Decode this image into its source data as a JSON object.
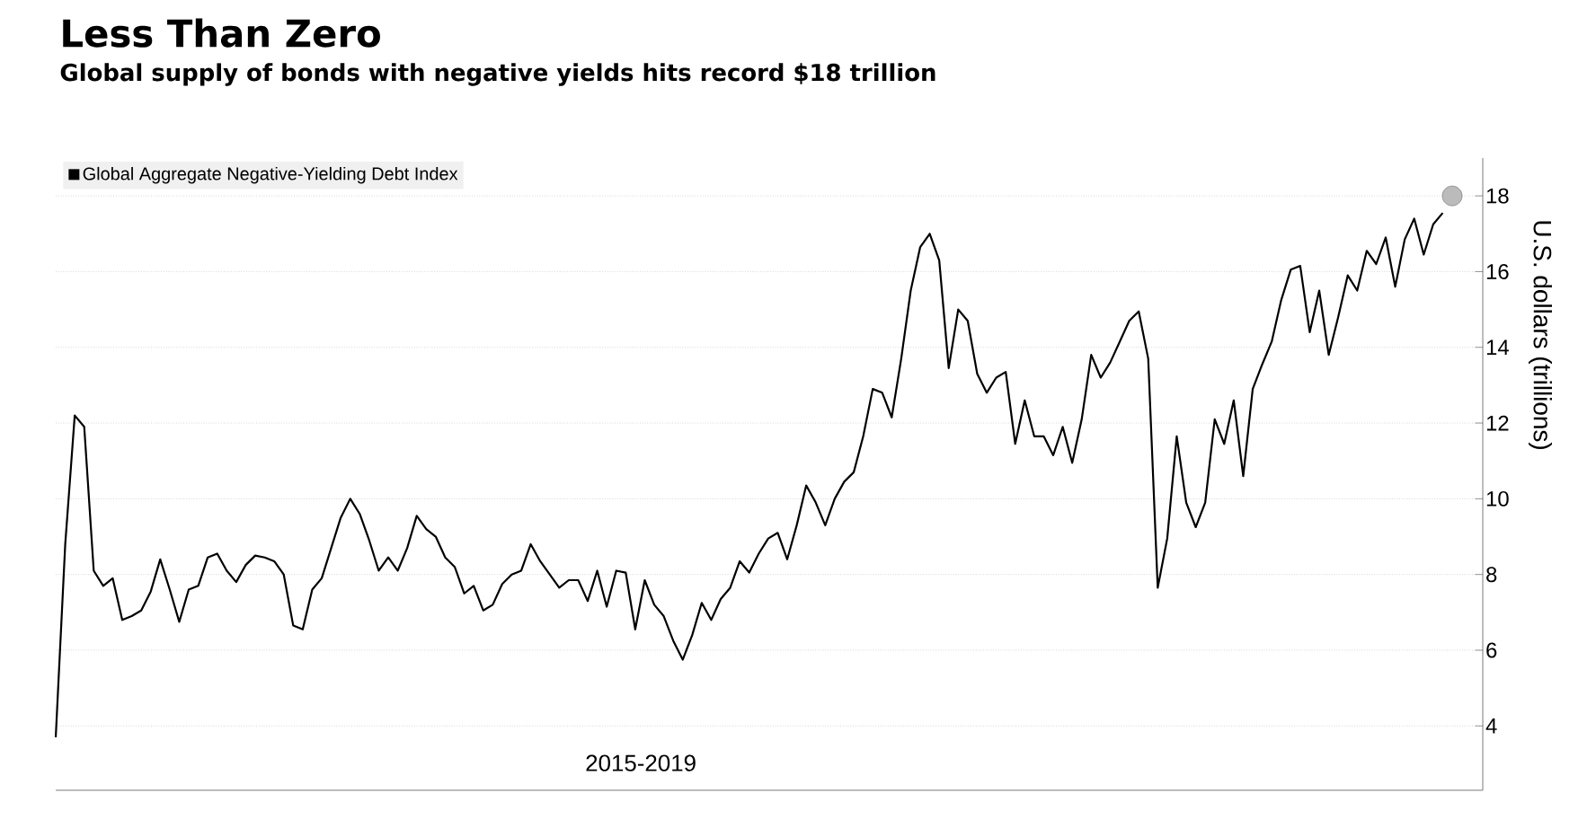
{
  "chart_data": {
    "type": "line",
    "title": "Less Than Zero",
    "subtitle": "Global supply of bonds with negative yields hits record $18 trillion",
    "ylabel": "U.S. dollars (trillions)",
    "annotations": [
      "2015-2019"
    ],
    "categories": [
      null,
      null,
      null,
      null,
      null,
      null,
      null,
      null,
      null,
      null,
      null,
      null,
      null,
      null,
      null,
      null,
      null,
      null,
      null,
      null,
      null,
      null,
      null,
      null,
      null,
      null,
      null,
      null,
      null,
      null,
      null,
      null,
      null,
      null,
      null,
      null,
      null,
      null,
      null,
      null,
      null,
      null,
      null,
      null,
      null,
      null,
      null,
      null,
      null,
      null,
      null,
      null,
      null,
      null,
      null,
      null,
      null,
      null,
      null,
      null,
      null,
      null,
      null,
      null,
      null,
      null,
      null,
      null,
      null,
      null,
      null,
      null,
      null,
      null,
      null,
      null,
      null,
      null,
      null,
      null,
      null,
      null,
      null,
      null,
      null,
      null,
      null,
      null,
      null,
      null,
      null,
      null,
      null,
      null,
      null,
      null,
      null,
      null,
      null,
      null,
      null,
      null,
      null,
      null,
      null,
      null,
      null,
      null,
      null,
      null,
      null,
      null,
      null,
      null,
      null,
      null,
      null,
      null,
      null,
      null,
      null,
      null,
      null,
      null,
      null,
      null,
      null,
      null,
      null,
      null,
      null,
      null,
      null,
      null,
      null,
      null,
      null,
      null,
      null,
      null,
      null,
      null,
      null,
      null,
      null,
      null,
      null,
      null
    ],
    "series": [
      {
        "name": "Global Aggregate Negative-Yielding Debt Index",
        "color": "#000000",
        "values": [
          3.7,
          8.8,
          12.2,
          11.9,
          8.1,
          7.7,
          7.9,
          6.8,
          6.9,
          7.05,
          7.55,
          8.4,
          7.6,
          6.75,
          7.6,
          7.7,
          8.45,
          8.55,
          8.1,
          7.8,
          8.25,
          8.5,
          8.45,
          8.35,
          8.0,
          6.65,
          6.55,
          7.6,
          7.9,
          8.7,
          9.5,
          10.0,
          9.6,
          8.9,
          8.1,
          8.45,
          8.1,
          8.7,
          9.55,
          9.2,
          9.0,
          8.45,
          8.2,
          7.5,
          7.7,
          7.05,
          7.2,
          7.75,
          8.0,
          8.1,
          8.8,
          8.35,
          8.0,
          7.65,
          7.85,
          7.85,
          7.3,
          8.1,
          7.15,
          8.1,
          8.05,
          6.55,
          7.85,
          7.2,
          6.9,
          6.25,
          5.75,
          6.4,
          7.25,
          6.8,
          7.35,
          7.65,
          8.35,
          8.05,
          8.55,
          8.95,
          9.1,
          8.4,
          9.3,
          10.35,
          9.9,
          9.3,
          10.0,
          10.45,
          10.7,
          11.65,
          12.9,
          12.8,
          12.15,
          13.7,
          15.5,
          16.65,
          17.0,
          16.3,
          13.45,
          15.0,
          14.7,
          13.3,
          12.8,
          13.2,
          13.35,
          11.45,
          12.6,
          11.65,
          11.65,
          11.15,
          11.9,
          10.95,
          12.1,
          13.8,
          13.2,
          13.6,
          14.15,
          14.7,
          14.95,
          13.7,
          7.65,
          8.95,
          11.65,
          9.9,
          9.25,
          9.9,
          12.1,
          11.45,
          12.6,
          10.6,
          12.9,
          13.55,
          14.15,
          15.25,
          16.05,
          16.15,
          14.4,
          15.5,
          13.8,
          14.8,
          15.9,
          15.5,
          16.55,
          16.2,
          16.9,
          15.6,
          16.85,
          17.4,
          16.45,
          17.25,
          17.55,
          null
        ]
      },
      {
        "type": "scatter",
        "color": "#bbbbbb",
        "marker": "circle",
        "values": [
          null,
          null,
          null,
          null,
          null,
          null,
          null,
          null,
          null,
          null,
          null,
          null,
          null,
          null,
          null,
          null,
          null,
          null,
          null,
          null,
          null,
          null,
          null,
          null,
          null,
          null,
          null,
          null,
          null,
          null,
          null,
          null,
          null,
          null,
          null,
          null,
          null,
          null,
          null,
          null,
          null,
          null,
          null,
          null,
          null,
          null,
          null,
          null,
          null,
          null,
          null,
          null,
          null,
          null,
          null,
          null,
          null,
          null,
          null,
          null,
          null,
          null,
          null,
          null,
          null,
          null,
          null,
          null,
          null,
          null,
          null,
          null,
          null,
          null,
          null,
          null,
          null,
          null,
          null,
          null,
          null,
          null,
          null,
          null,
          null,
          null,
          null,
          null,
          null,
          null,
          null,
          null,
          null,
          null,
          null,
          null,
          null,
          null,
          null,
          null,
          null,
          null,
          null,
          null,
          null,
          null,
          null,
          null,
          null,
          null,
          null,
          null,
          null,
          null,
          null,
          null,
          null,
          null,
          null,
          null,
          null,
          null,
          null,
          null,
          null,
          null,
          null,
          null,
          null,
          null,
          null,
          null,
          null,
          null,
          null,
          null,
          null,
          null,
          null,
          null,
          null,
          null,
          null,
          null,
          null,
          null,
          null,
          18
        ]
      }
    ],
    "ylim": [
      2.3,
      19
    ],
    "yticks": [
      4,
      6,
      8,
      10,
      12,
      14,
      16,
      18
    ],
    "grid": "y",
    "legend": "top left"
  }
}
